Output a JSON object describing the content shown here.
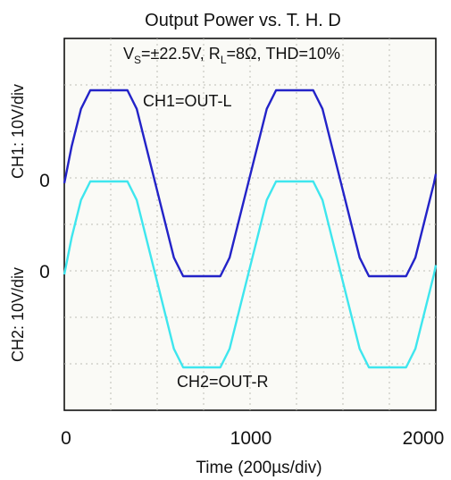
{
  "chart_data": {
    "type": "line",
    "title": "Output Power vs. T. H. D",
    "conditions": {
      "vs_main": "V",
      "vs_sub": "S",
      "vs_rest": "=±22.5V, R",
      "rl_sub": "L",
      "rl_rest": "=8Ω, THD=10%"
    },
    "xlabel": "Time (200µs/div)",
    "xlim": [
      0,
      2000
    ],
    "x_ticks": [
      "0",
      "1000",
      "2000"
    ],
    "y_labels": {
      "ch1": "CH1: 10V/div",
      "ch2": "CH2: 10V/div"
    },
    "zero_labels": {
      "ch1": "0",
      "ch2": "0"
    },
    "grid": true,
    "series": [
      {
        "name": "CH1=OUT-L",
        "color": "#2323c8",
        "x": [
          0,
          40,
          90,
          140,
          340,
          390,
          440,
          490,
          540,
          590,
          640,
          840,
          890,
          940,
          990,
          1040,
          1090,
          1140,
          1340,
          1390,
          1440,
          1490,
          1540,
          1590,
          1640,
          1840,
          1890,
          1940,
          1990,
          2000
        ],
        "y": [
          0,
          8,
          16,
          20,
          20,
          16,
          8,
          0,
          -8,
          -16,
          -20,
          -20,
          -16,
          -8,
          0,
          8,
          16,
          20,
          20,
          16,
          8,
          0,
          -8,
          -16,
          -20,
          -20,
          -16,
          -8,
          0,
          2
        ]
      },
      {
        "name": "CH2=OUT-R",
        "color": "#3ee6ee",
        "x": [
          0,
          40,
          90,
          140,
          340,
          390,
          440,
          490,
          540,
          590,
          640,
          840,
          890,
          940,
          990,
          1040,
          1090,
          1140,
          1340,
          1390,
          1440,
          1490,
          1540,
          1590,
          1640,
          1840,
          1890,
          1940,
          1990,
          2000
        ],
        "y": [
          0,
          8,
          16,
          20,
          20,
          16,
          8,
          0,
          -8,
          -16,
          -20,
          -20,
          -16,
          -8,
          0,
          8,
          16,
          20,
          20,
          16,
          8,
          0,
          -8,
          -16,
          -20,
          -20,
          -16,
          -8,
          0,
          2
        ]
      }
    ]
  }
}
